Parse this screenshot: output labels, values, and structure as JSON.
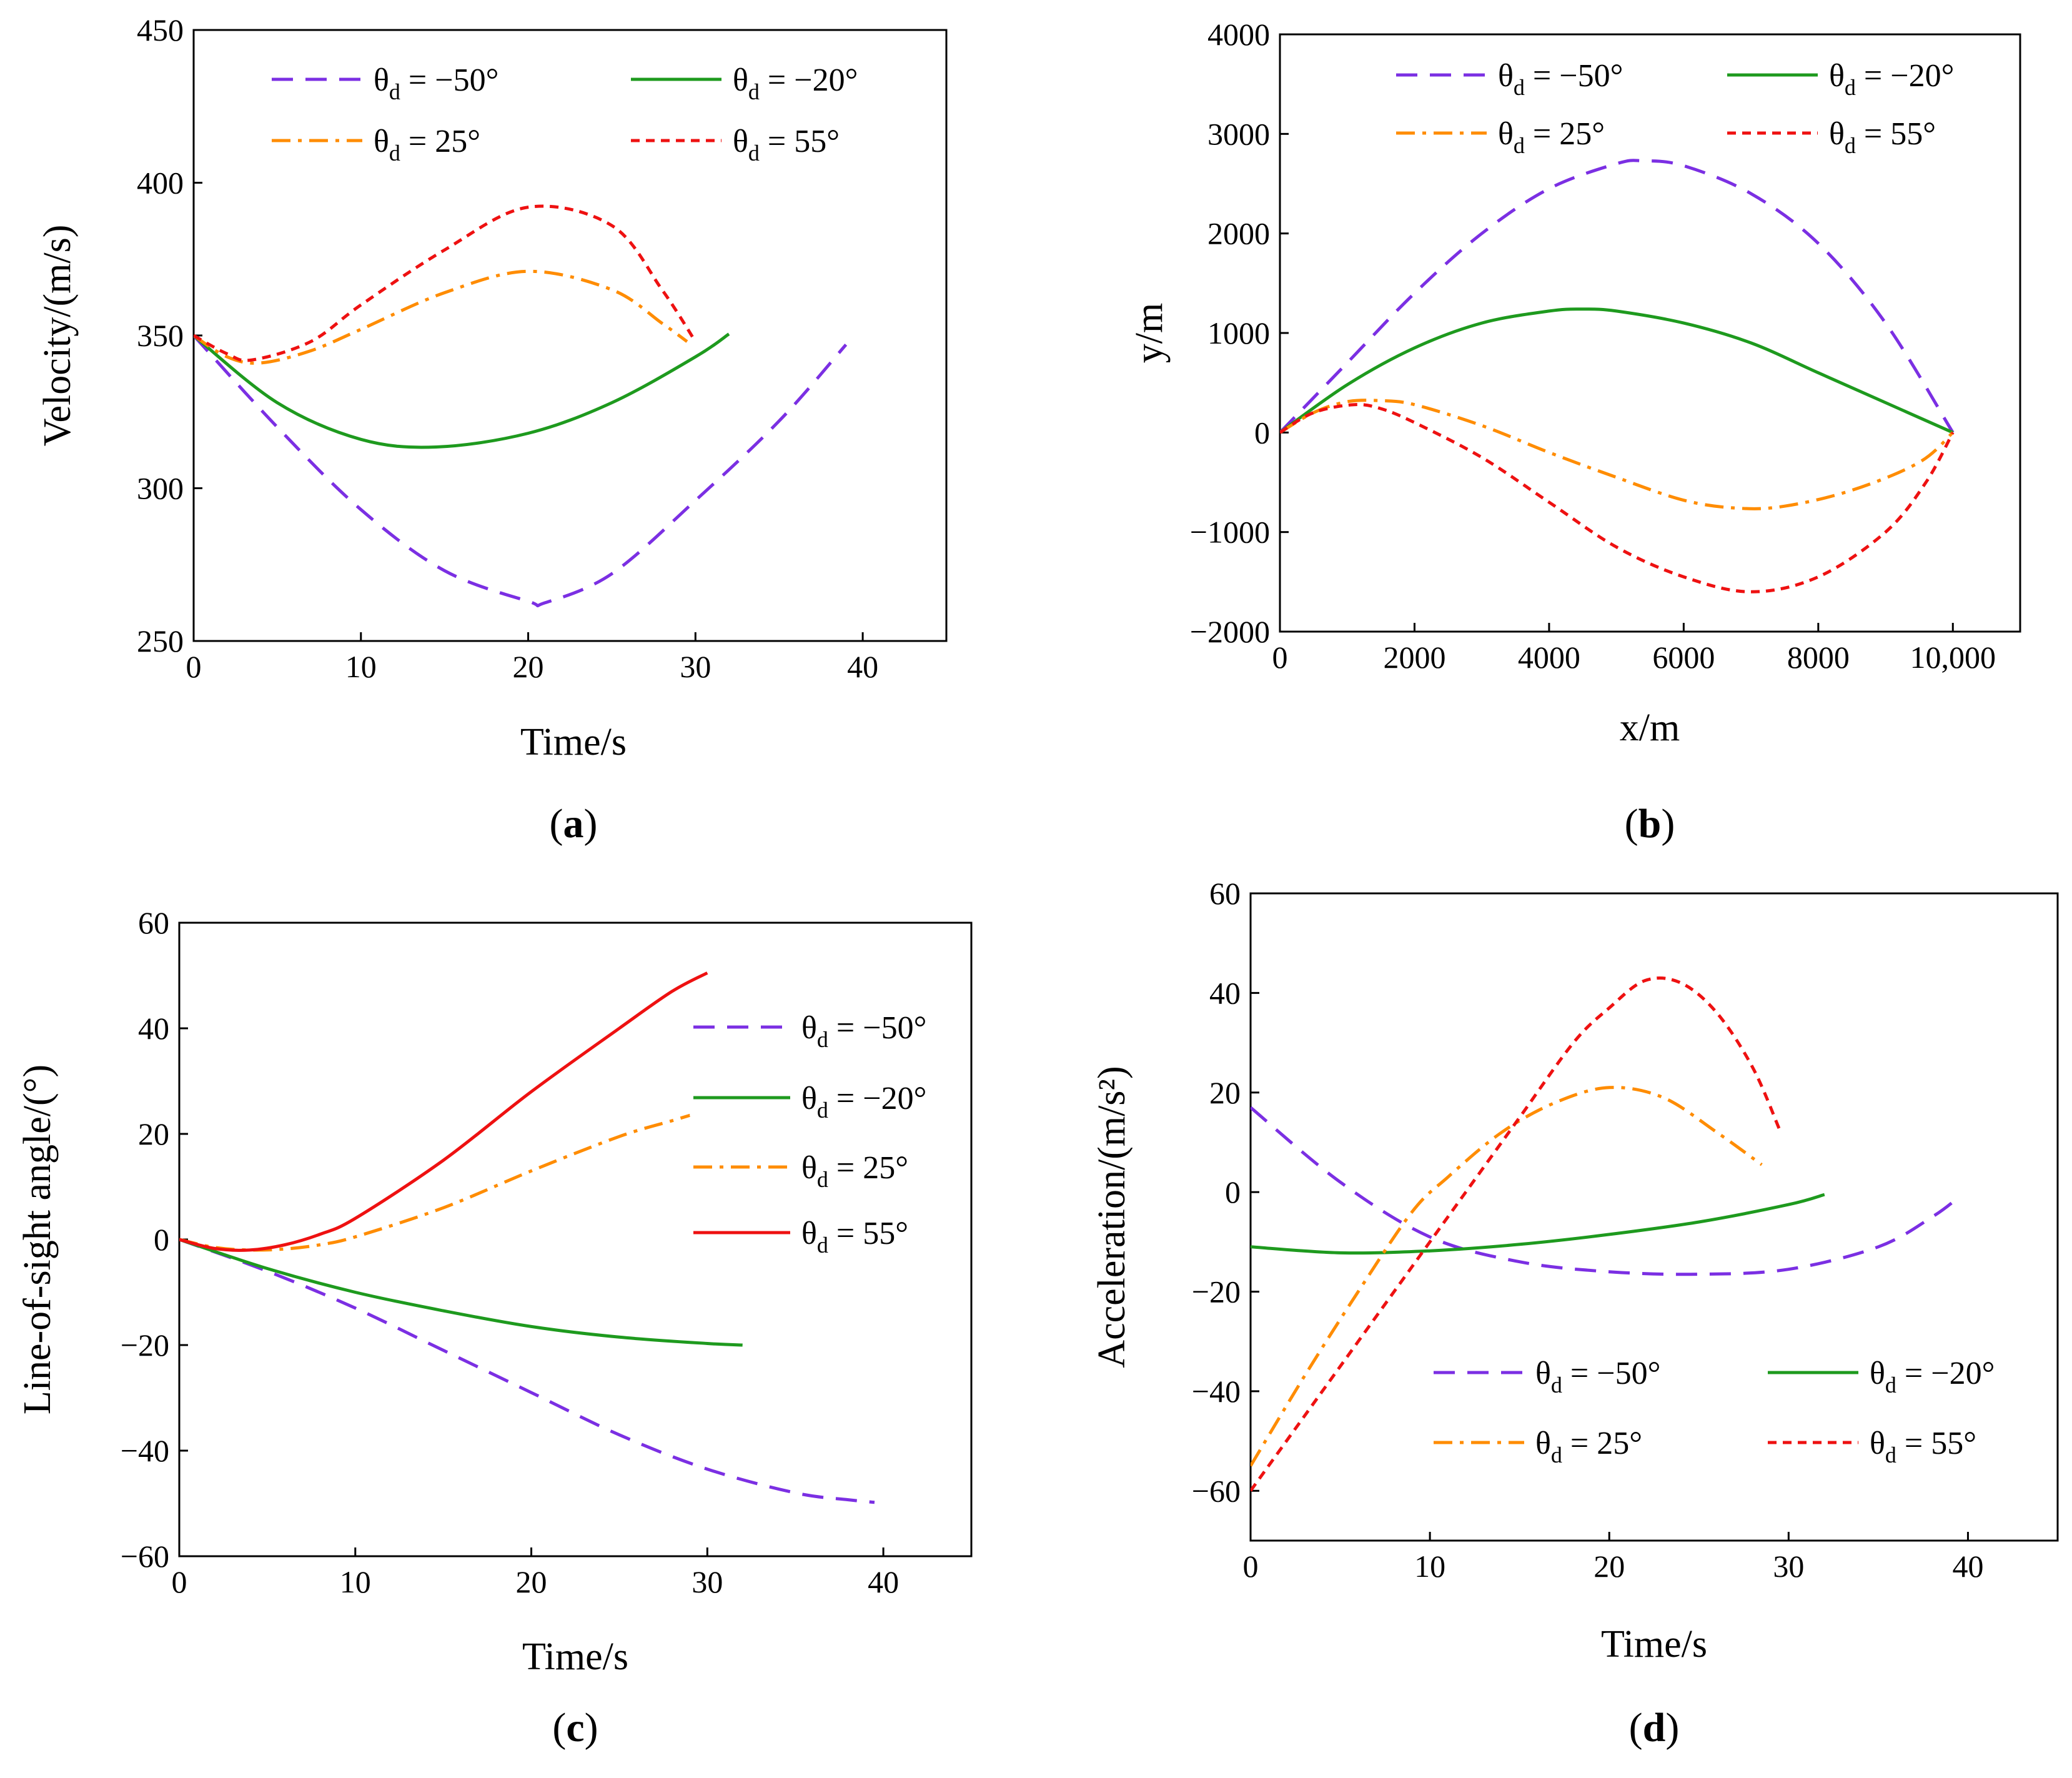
{
  "colors": {
    "s1": "#7B2FE3",
    "s2": "#1E9A1E",
    "s3": "#FF8C00",
    "s4": "#EE1111",
    "s4c": "#EE1111"
  },
  "legend_labels": [
    "θ",
    "d",
    " = −50°",
    " = −20°",
    " = 25°",
    " = 55°"
  ],
  "chart_data": [
    {
      "id": "a",
      "type": "line",
      "panel_label": "a",
      "xlabel": "Time/s",
      "ylabel": "Velocity/(m/s)",
      "xlim": [
        0,
        45
      ],
      "ylim": [
        250,
        450
      ],
      "xticks": [
        0,
        10,
        20,
        30,
        40
      ],
      "yticks": [
        250,
        300,
        350,
        400,
        450
      ],
      "xtick_labels": [
        "0",
        "10",
        "20",
        "30",
        "40"
      ],
      "ytick_labels": [
        "250",
        "300",
        "350",
        "400",
        "450"
      ],
      "legend": "top",
      "series": [
        {
          "name": "θd = −50°",
          "style": "dash",
          "color": "s1",
          "x": [
            0,
            5,
            10,
            15,
            20,
            21,
            25,
            30,
            35,
            39
          ],
          "y": [
            350,
            320,
            293,
            273,
            263,
            262.5,
            272,
            296,
            322,
            347
          ]
        },
        {
          "name": "θd = −20°",
          "style": "solid",
          "color": "s2",
          "x": [
            0,
            5,
            10,
            14.5,
            20,
            25,
            30,
            32
          ],
          "y": [
            350,
            328,
            316,
            313.5,
            318,
            328,
            343,
            350.5
          ]
        },
        {
          "name": "θd = 25°",
          "style": "dashdot",
          "color": "s3",
          "x": [
            0,
            2,
            4,
            7,
            10,
            15,
            20,
            25,
            28,
            29.5
          ],
          "y": [
            350,
            343,
            341,
            345,
            352,
            364,
            371,
            365,
            354,
            348
          ]
        },
        {
          "name": "θd = 55°",
          "style": "dot",
          "color": "s4",
          "x": [
            0,
            2,
            3.5,
            7,
            10,
            15,
            20,
            25,
            28,
            30
          ],
          "y": [
            350,
            344,
            342,
            348,
            360,
            378,
            392,
            386,
            365,
            348
          ]
        }
      ]
    },
    {
      "id": "b",
      "type": "line",
      "panel_label": "b",
      "xlabel": "x/m",
      "ylabel": "y/m",
      "xlim": [
        0,
        11000
      ],
      "ylim": [
        -2000,
        4000
      ],
      "xticks": [
        0,
        2000,
        4000,
        6000,
        8000,
        10000
      ],
      "yticks": [
        -2000,
        -1000,
        0,
        1000,
        2000,
        3000,
        4000
      ],
      "xtick_labels": [
        "0",
        "2000",
        "4000",
        "6000",
        "8000",
        "10,000"
      ],
      "ytick_labels": [
        "−2000",
        "−1000",
        "0",
        "1000",
        "2000",
        "3000",
        "4000"
      ],
      "legend": "top",
      "series": [
        {
          "name": "θd = −50°",
          "style": "dash",
          "color": "s1",
          "x": [
            0,
            1000,
            2000,
            3000,
            4000,
            5000,
            5400,
            6000,
            7000,
            8000,
            9000,
            10000
          ],
          "y": [
            0,
            700,
            1400,
            2000,
            2450,
            2700,
            2730,
            2680,
            2400,
            1900,
            1100,
            0
          ]
        },
        {
          "name": "θd = −20°",
          "style": "solid",
          "color": "s2",
          "x": [
            0,
            1000,
            2000,
            3000,
            4000,
            4500,
            5000,
            6000,
            7000,
            8000,
            9000,
            10000
          ],
          "y": [
            0,
            480,
            850,
            1100,
            1220,
            1240,
            1220,
            1100,
            900,
            600,
            300,
            0
          ]
        },
        {
          "name": "θd = 25°",
          "style": "dashdot",
          "color": "s3",
          "x": [
            0,
            500,
            1000,
            1500,
            2000,
            3000,
            4000,
            5000,
            6000,
            6800,
            7500,
            8500,
            9500,
            10000
          ],
          "y": [
            0,
            200,
            310,
            320,
            280,
            70,
            -200,
            -450,
            -680,
            -760,
            -740,
            -580,
            -300,
            0
          ]
        },
        {
          "name": "θd = 55°",
          "style": "dot",
          "color": "s4",
          "x": [
            0,
            500,
            1100,
            1500,
            2000,
            3000,
            4000,
            5000,
            6000,
            7000,
            8000,
            9000,
            9600,
            10000
          ],
          "y": [
            0,
            200,
            280,
            240,
            100,
            -250,
            -700,
            -1150,
            -1450,
            -1600,
            -1450,
            -1000,
            -500,
            0
          ]
        }
      ]
    },
    {
      "id": "c",
      "type": "line",
      "panel_label": "c",
      "xlabel": "Time/s",
      "ylabel": "Line-of-sight angle/(°)",
      "xlim": [
        0,
        45
      ],
      "ylim": [
        -60,
        60
      ],
      "xticks": [
        0,
        10,
        20,
        30,
        40
      ],
      "yticks": [
        -60,
        -40,
        -20,
        0,
        20,
        40,
        60
      ],
      "xtick_labels": [
        "0",
        "10",
        "20",
        "30",
        "40"
      ],
      "ytick_labels": [
        "−60",
        "−40",
        "−20",
        "0",
        "20",
        "40",
        "60"
      ],
      "legend": "right",
      "series": [
        {
          "name": "θd = −50°",
          "style": "dash",
          "color": "s1",
          "x": [
            0,
            5,
            10,
            15,
            20,
            25,
            30,
            35,
            38,
            39.5
          ],
          "y": [
            0,
            -6,
            -13,
            -21,
            -29,
            -37,
            -43.5,
            -48,
            -49.3,
            -49.8
          ]
        },
        {
          "name": "θd = −20°",
          "style": "solid",
          "color": "s2",
          "x": [
            0,
            5,
            10,
            15,
            20,
            25,
            30,
            32
          ],
          "y": [
            0,
            -5.5,
            -10,
            -13.5,
            -16.5,
            -18.5,
            -19.7,
            -20
          ]
        },
        {
          "name": "θd = 25°",
          "style": "dashdot",
          "color": "s3",
          "x": [
            0,
            2,
            4,
            6,
            8,
            10,
            15,
            20,
            25,
            28,
            29
          ],
          "y": [
            0,
            -1.5,
            -2,
            -1.8,
            -1,
            0.5,
            6,
            13,
            19.5,
            22.5,
            23.5
          ]
        },
        {
          "name": "θd = 55°",
          "style": "solid",
          "color": "s4c",
          "x": [
            0,
            2,
            4,
            6,
            8,
            10,
            15,
            20,
            25,
            28,
            30
          ],
          "y": [
            0,
            -1.7,
            -2,
            -1,
            1,
            4,
            15,
            28,
            40,
            47,
            50.5
          ]
        }
      ]
    },
    {
      "id": "d",
      "type": "line",
      "panel_label": "d",
      "xlabel": "Time/s",
      "ylabel": "Acceleration/(m/s²)",
      "xlim": [
        0,
        45
      ],
      "ylim": [
        -70,
        60
      ],
      "xticks": [
        0,
        10,
        20,
        30,
        40
      ],
      "yticks": [
        -60,
        -40,
        -20,
        0,
        20,
        40,
        60
      ],
      "xtick_labels": [
        "0",
        "10",
        "20",
        "30",
        "40"
      ],
      "ytick_labels": [
        "−60",
        "−40",
        "−20",
        "0",
        "20",
        "40",
        "60"
      ],
      "legend": "bottom",
      "series": [
        {
          "name": "θd = −50°",
          "style": "dash",
          "color": "s1",
          "x": [
            0,
            5,
            10,
            15,
            20,
            25,
            30,
            35,
            38,
            39.5
          ],
          "y": [
            17,
            2,
            -9,
            -14,
            -16,
            -16.5,
            -15.5,
            -11,
            -5,
            -1
          ]
        },
        {
          "name": "θd = −20°",
          "style": "solid",
          "color": "s2",
          "x": [
            0,
            5,
            10,
            15,
            20,
            25,
            30,
            32
          ],
          "y": [
            -11,
            -12.2,
            -11.8,
            -10.5,
            -8.5,
            -6,
            -2.5,
            -0.5
          ]
        },
        {
          "name": "θd = 25°",
          "style": "dashdot",
          "color": "s3",
          "x": [
            0,
            3,
            6,
            9,
            11,
            14,
            17,
            20,
            23,
            26,
            28.5
          ],
          "y": [
            -55,
            -37,
            -20,
            -4,
            3,
            12,
            18,
            21,
            19,
            12,
            5.5
          ]
        },
        {
          "name": "θd = 55°",
          "style": "dot",
          "color": "s4",
          "x": [
            0,
            3,
            6,
            9,
            12,
            15,
            18,
            20,
            22,
            24,
            26,
            28,
            29.5
          ],
          "y": [
            -60,
            -45,
            -30,
            -15,
            0,
            15,
            30,
            37,
            42.5,
            42,
            36,
            25,
            12.5
          ]
        }
      ]
    }
  ]
}
